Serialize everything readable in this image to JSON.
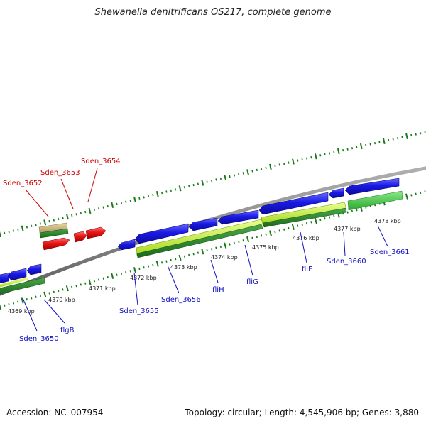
{
  "title": "Shewanella denitrificans OS217, complete genome",
  "footer": {
    "accession": "Accession: NC_007954",
    "summary": "Topology: circular; Length: 4,545,906 bp; Genes: 3,880"
  },
  "colors": {
    "backbone": "#8a8a8a",
    "forward_cds": "#1414e6",
    "reverse_cds": "#e61414",
    "rna_tan": "#c8b478",
    "feature_dark_green": "#1e7a1e",
    "feature_light_green": "#c8f032",
    "feature_mid_green": "#3cc83c",
    "tick_green": "#1a7a1a",
    "label_blue": "#1010c0",
    "label_red": "#cc0000"
  },
  "scale_labels": [
    "4369 kbp",
    "4370 kbp",
    "4371 kbp",
    "4372 kbp",
    "4373 kbp",
    "4374 kbp",
    "4375 kbp",
    "4376 kbp",
    "4377 kbp",
    "4378 kbp"
  ],
  "gene_labels": {
    "red": [
      "Sden_3652",
      "Sden_3653",
      "Sden_3654"
    ],
    "blue": [
      "Sden_3650",
      "flgB",
      "Sden_3655",
      "Sden_3656",
      "fliH",
      "fliG",
      "fliF",
      "Sden_3660",
      "Sden_3661"
    ]
  }
}
